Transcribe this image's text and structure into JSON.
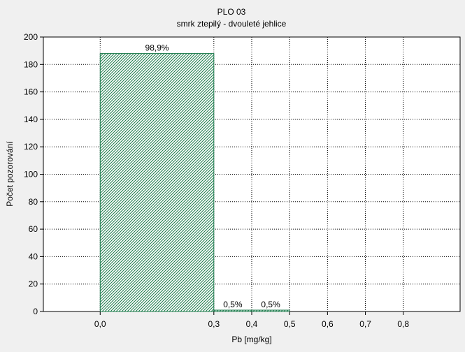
{
  "chart_data": {
    "type": "bar",
    "title": "PLO 03",
    "subtitle": "smrk ztepilý - dvouleté jehlice",
    "xlabel": "Pb [mg/kg]",
    "ylabel": "Počet pozorování",
    "xlim": [
      -0.15,
      0.95
    ],
    "ylim": [
      0,
      200
    ],
    "x_ticks": [
      0.0,
      0.3,
      0.4,
      0.5,
      0.6,
      0.7,
      0.8
    ],
    "x_tick_labels": [
      "0,0",
      "0,3",
      "0,4",
      "0,5",
      "0,6",
      "0,7",
      "0,8"
    ],
    "y_ticks": [
      0,
      20,
      40,
      60,
      80,
      100,
      120,
      140,
      160,
      180,
      200
    ],
    "y_tick_labels": [
      "0",
      "20",
      "40",
      "60",
      "80",
      "100",
      "120",
      "140",
      "160",
      "180",
      "200"
    ],
    "bins": [
      {
        "from": 0.0,
        "to": 0.3,
        "value": 188,
        "label": "98,9%"
      },
      {
        "from": 0.3,
        "to": 0.4,
        "value": 1,
        "label": "0,5%"
      },
      {
        "from": 0.4,
        "to": 0.5,
        "value": 1,
        "label": "0,5%"
      }
    ],
    "grid": true,
    "bar_fill": "#1a7a4a",
    "bar_stroke": "#1a7a4a"
  }
}
